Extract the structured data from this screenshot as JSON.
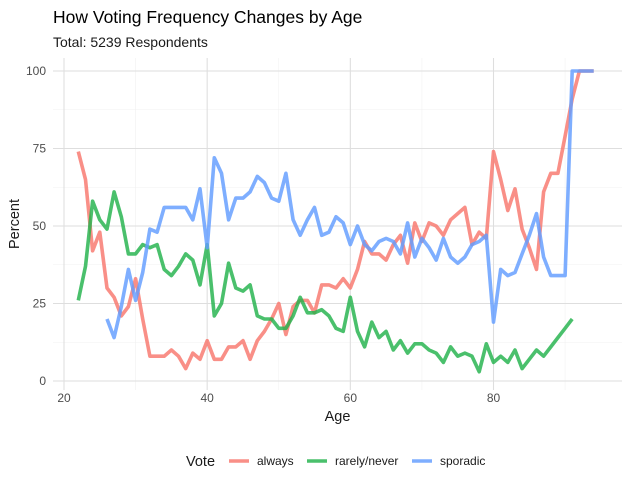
{
  "chart_data": {
    "type": "line",
    "title": "How Voting Frequency Changes by Age",
    "subtitle": "Total: 5239 Respondents",
    "xlabel": "Age",
    "ylabel": "Percent",
    "xlim": [
      20,
      94
    ],
    "ylim": [
      0,
      100
    ],
    "x_ticks": [
      20,
      40,
      60,
      80
    ],
    "y_ticks": [
      0,
      25,
      50,
      75,
      100
    ],
    "grid": true,
    "legend": {
      "title": "Vote",
      "position": "bottom"
    },
    "series": [
      {
        "name": "always",
        "color": "#F8766D",
        "points": [
          [
            22,
            74
          ],
          [
            23,
            65
          ],
          [
            24,
            42
          ],
          [
            25,
            48
          ],
          [
            26,
            30
          ],
          [
            27,
            27
          ],
          [
            28,
            21
          ],
          [
            29,
            24
          ],
          [
            30,
            33
          ],
          [
            31,
            20
          ],
          [
            32,
            8
          ],
          [
            33,
            8
          ],
          [
            34,
            8
          ],
          [
            35,
            10
          ],
          [
            36,
            8
          ],
          [
            37,
            4
          ],
          [
            38,
            9
          ],
          [
            39,
            7
          ],
          [
            40,
            13
          ],
          [
            41,
            7
          ],
          [
            42,
            7
          ],
          [
            43,
            11
          ],
          [
            44,
            11
          ],
          [
            45,
            13
          ],
          [
            46,
            7
          ],
          [
            47,
            13
          ],
          [
            48,
            16
          ],
          [
            49,
            20
          ],
          [
            50,
            25
          ],
          [
            51,
            15
          ],
          [
            52,
            24
          ],
          [
            53,
            26
          ],
          [
            54,
            26
          ],
          [
            55,
            22
          ],
          [
            56,
            31
          ],
          [
            57,
            31
          ],
          [
            58,
            30
          ],
          [
            59,
            33
          ],
          [
            60,
            30
          ],
          [
            61,
            36
          ],
          [
            62,
            45
          ],
          [
            63,
            41
          ],
          [
            64,
            41
          ],
          [
            65,
            39
          ],
          [
            66,
            44
          ],
          [
            67,
            47
          ],
          [
            68,
            38
          ],
          [
            69,
            51
          ],
          [
            70,
            45
          ],
          [
            71,
            51
          ],
          [
            72,
            50
          ],
          [
            73,
            47
          ],
          [
            74,
            52
          ],
          [
            75,
            54
          ],
          [
            76,
            56
          ],
          [
            77,
            44
          ],
          [
            78,
            48
          ],
          [
            79,
            46
          ],
          [
            80,
            74
          ],
          [
            81,
            65
          ],
          [
            82,
            55
          ],
          [
            83,
            62
          ],
          [
            84,
            49
          ],
          [
            85,
            43
          ],
          [
            86,
            36
          ],
          [
            87,
            61
          ],
          [
            88,
            67
          ],
          [
            89,
            67
          ],
          [
            90,
            79
          ],
          [
            91,
            91
          ],
          [
            92,
            100
          ],
          [
            93,
            100
          ],
          [
            94,
            100
          ]
        ]
      },
      {
        "name": "rarely/never",
        "color": "#22B24C",
        "points": [
          [
            22,
            26
          ],
          [
            23,
            37
          ],
          [
            24,
            58
          ],
          [
            25,
            52
          ],
          [
            26,
            49
          ],
          [
            27,
            61
          ],
          [
            28,
            53
          ],
          [
            29,
            41
          ],
          [
            30,
            41
          ],
          [
            31,
            44
          ],
          [
            32,
            43
          ],
          [
            33,
            44
          ],
          [
            34,
            36
          ],
          [
            35,
            34
          ],
          [
            36,
            37
          ],
          [
            37,
            41
          ],
          [
            38,
            39
          ],
          [
            39,
            31
          ],
          [
            40,
            44
          ],
          [
            41,
            21
          ],
          [
            42,
            25
          ],
          [
            43,
            38
          ],
          [
            44,
            30
          ],
          [
            45,
            29
          ],
          [
            46,
            31
          ],
          [
            47,
            21
          ],
          [
            48,
            20
          ],
          [
            49,
            20
          ],
          [
            50,
            17
          ],
          [
            51,
            17
          ],
          [
            52,
            21
          ],
          [
            53,
            27
          ],
          [
            54,
            22
          ],
          [
            55,
            22
          ],
          [
            56,
            23
          ],
          [
            57,
            21
          ],
          [
            58,
            17
          ],
          [
            59,
            16
          ],
          [
            60,
            27
          ],
          [
            61,
            16
          ],
          [
            62,
            11
          ],
          [
            63,
            19
          ],
          [
            64,
            14
          ],
          [
            65,
            16
          ],
          [
            66,
            10
          ],
          [
            67,
            13
          ],
          [
            68,
            9
          ],
          [
            69,
            12
          ],
          [
            70,
            12
          ],
          [
            71,
            10
          ],
          [
            72,
            9
          ],
          [
            73,
            6
          ],
          [
            74,
            11
          ],
          [
            75,
            8
          ],
          [
            76,
            9
          ],
          [
            77,
            8
          ],
          [
            78,
            3
          ],
          [
            79,
            12
          ],
          [
            80,
            6
          ],
          [
            81,
            8
          ],
          [
            82,
            6
          ],
          [
            83,
            10
          ],
          [
            84,
            4
          ],
          [
            85,
            7
          ],
          [
            86,
            10
          ],
          [
            87,
            8
          ],
          [
            88,
            11
          ],
          [
            89,
            14
          ],
          [
            90,
            17
          ],
          [
            91,
            20
          ]
        ]
      },
      {
        "name": "sporadic",
        "color": "#619CFF",
        "points": [
          [
            26,
            20
          ],
          [
            27,
            14
          ],
          [
            28,
            24
          ],
          [
            29,
            36
          ],
          [
            30,
            26
          ],
          [
            31,
            35
          ],
          [
            32,
            49
          ],
          [
            33,
            48
          ],
          [
            34,
            56
          ],
          [
            35,
            56
          ],
          [
            36,
            56
          ],
          [
            37,
            56
          ],
          [
            38,
            52
          ],
          [
            39,
            62
          ],
          [
            40,
            43
          ],
          [
            41,
            72
          ],
          [
            42,
            67
          ],
          [
            43,
            52
          ],
          [
            44,
            59
          ],
          [
            45,
            59
          ],
          [
            46,
            61
          ],
          [
            47,
            66
          ],
          [
            48,
            64
          ],
          [
            49,
            59
          ],
          [
            50,
            58
          ],
          [
            51,
            67
          ],
          [
            52,
            52
          ],
          [
            53,
            47
          ],
          [
            54,
            52
          ],
          [
            55,
            56
          ],
          [
            56,
            47
          ],
          [
            57,
            48
          ],
          [
            58,
            53
          ],
          [
            59,
            51
          ],
          [
            60,
            44
          ],
          [
            61,
            50
          ],
          [
            62,
            44
          ],
          [
            63,
            42
          ],
          [
            64,
            45
          ],
          [
            65,
            46
          ],
          [
            66,
            45
          ],
          [
            67,
            41
          ],
          [
            68,
            51
          ],
          [
            69,
            40
          ],
          [
            70,
            46
          ],
          [
            71,
            43
          ],
          [
            72,
            39
          ],
          [
            73,
            46
          ],
          [
            74,
            40
          ],
          [
            75,
            38
          ],
          [
            76,
            40
          ],
          [
            77,
            44
          ],
          [
            78,
            45
          ],
          [
            79,
            47
          ],
          [
            80,
            19
          ],
          [
            81,
            36
          ],
          [
            82,
            34
          ],
          [
            83,
            35
          ],
          [
            84,
            41
          ],
          [
            85,
            47
          ],
          [
            86,
            54
          ],
          [
            87,
            40
          ],
          [
            88,
            34
          ],
          [
            89,
            34
          ],
          [
            90,
            34
          ],
          [
            91,
            100
          ],
          [
            92,
            100
          ],
          [
            93,
            100
          ],
          [
            94,
            100
          ]
        ]
      }
    ]
  }
}
